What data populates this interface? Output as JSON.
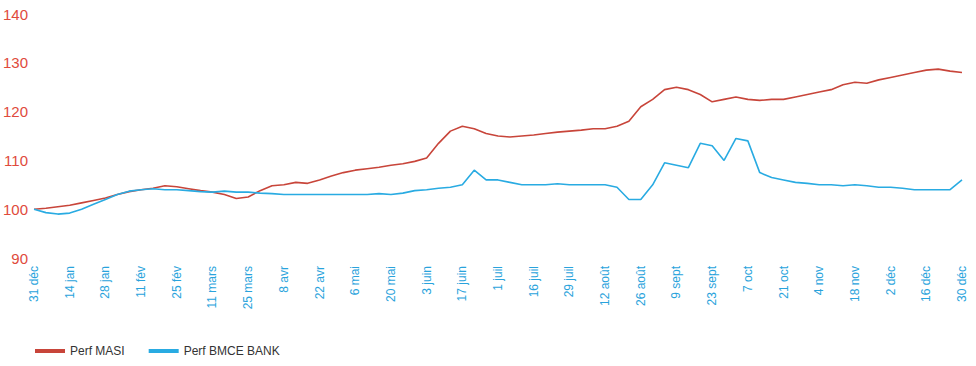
{
  "chart_data": {
    "type": "line",
    "categories": [
      "31 déc",
      null,
      null,
      "14 jan",
      null,
      null,
      "28 jan",
      null,
      null,
      "11 fév",
      null,
      null,
      "25 fév",
      null,
      null,
      "11 mars",
      null,
      null,
      "25 mars",
      null,
      null,
      "8 avr",
      null,
      null,
      "22 avr",
      null,
      null,
      "6 mai",
      null,
      null,
      "20 mai",
      null,
      null,
      "3 juin",
      null,
      null,
      "17 juin",
      null,
      null,
      "1 juil",
      null,
      null,
      "16 juil",
      null,
      null,
      "29 juil",
      null,
      null,
      "12 août",
      null,
      null,
      "26 août",
      null,
      null,
      "9 sept",
      null,
      null,
      "23 sept",
      null,
      null,
      "7 oct",
      null,
      null,
      "21 oct",
      null,
      null,
      "4 nov",
      null,
      null,
      "18 nov",
      null,
      null,
      "2 déc",
      null,
      null,
      "16 déc",
      null,
      null,
      "30 déc"
    ],
    "series": [
      {
        "name": "Perf MASI",
        "color": "#c8453a",
        "values": [
          100,
          100.2,
          100.5,
          100.8,
          101.3,
          101.8,
          102.3,
          103,
          103.6,
          104,
          104.3,
          104.8,
          104.6,
          104.2,
          103.8,
          103.5,
          103,
          102.2,
          102.5,
          103.8,
          104.8,
          105,
          105.5,
          105.3,
          106,
          106.8,
          107.5,
          108,
          108.3,
          108.6,
          109,
          109.3,
          109.8,
          110.5,
          113.5,
          116,
          117,
          116.5,
          115.5,
          115,
          114.8,
          115,
          115.2,
          115.5,
          115.8,
          116,
          116.2,
          116.5,
          116.5,
          117,
          118,
          121,
          122.5,
          124.5,
          125,
          124.5,
          123.5,
          122,
          122.5,
          123,
          122.5,
          122.3,
          122.5,
          122.5,
          123,
          123.5,
          124,
          124.5,
          125.5,
          126,
          125.8,
          126.5,
          127,
          127.5,
          128,
          128.5,
          128.7,
          128.3,
          128
        ]
      },
      {
        "name": "Perf BMCE BANK",
        "color": "#29abe2",
        "values": [
          100,
          99.3,
          99,
          99.2,
          100,
          101,
          102,
          103,
          103.7,
          104,
          104.2,
          104,
          104,
          103.8,
          103.6,
          103.5,
          103.7,
          103.5,
          103.5,
          103.3,
          103.2,
          103,
          103,
          103,
          103,
          103,
          103,
          103,
          103,
          103.2,
          103,
          103.3,
          103.8,
          104,
          104.3,
          104.5,
          105,
          108,
          106,
          106,
          105.5,
          105,
          105,
          105,
          105.2,
          105,
          105,
          105,
          105,
          104.5,
          102,
          102,
          105,
          109.5,
          109,
          108.5,
          113.5,
          113,
          110,
          114.5,
          114,
          107.5,
          106.5,
          106,
          105.5,
          105.3,
          105,
          105,
          104.8,
          105,
          104.8,
          104.5,
          104.5,
          104.3,
          104,
          104,
          104,
          104,
          106
        ]
      }
    ],
    "ylim": [
      90,
      140
    ],
    "yticks": [
      90,
      100,
      110,
      120,
      130,
      140
    ],
    "grid": false,
    "legend": "bottom-left"
  }
}
